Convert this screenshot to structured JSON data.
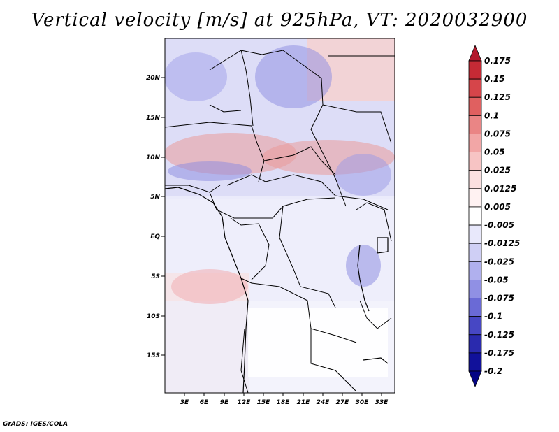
{
  "title": "Vertical velocity [m/s] at 925hPa, VT: 2020032900",
  "credit": "GrADS: IGES/COLA",
  "map": {
    "lat_labels": [
      "20N",
      "15N",
      "10N",
      "5N",
      "EQ",
      "5S",
      "10S",
      "15S"
    ],
    "lon_labels": [
      "3E",
      "6E",
      "9E",
      "12E",
      "15E",
      "18E",
      "21E",
      "24E",
      "27E",
      "30E",
      "33E"
    ]
  },
  "colorbar": {
    "levels": [
      "0.175",
      "0.15",
      "0.125",
      "0.1",
      "0.075",
      "0.05",
      "0.025",
      "0.0125",
      "0.005",
      "-0.005",
      "-0.0125",
      "-0.025",
      "-0.05",
      "-0.075",
      "-0.1",
      "-0.125",
      "-0.175",
      "-0.2"
    ],
    "colors": [
      "#b2182b",
      "#c52a35",
      "#d6454a",
      "#e06060",
      "#ea8585",
      "#f2a6a6",
      "#f7c4c4",
      "#fbe0e0",
      "#fff2f2",
      "#ffffff",
      "#e8e8fb",
      "#cfcff5",
      "#b0b0ee",
      "#9090e4",
      "#6a6ad6",
      "#4747c4",
      "#2a2aae",
      "#11119a",
      "#050585"
    ]
  }
}
